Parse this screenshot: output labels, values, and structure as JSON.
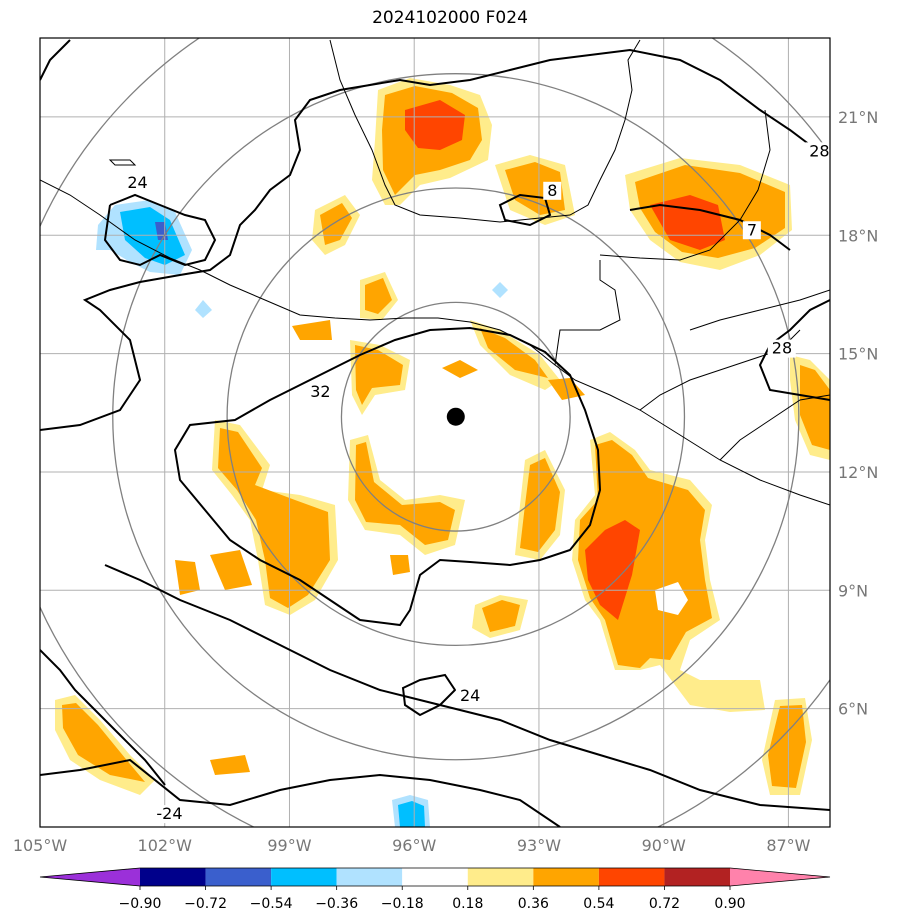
{
  "title": "2024102000 F024",
  "map": {
    "lon_range": [
      -105,
      -86
    ],
    "lat_range": [
      3,
      23
    ],
    "lon_ticks": [
      {
        "value": -105,
        "label": "105°W"
      },
      {
        "value": -102,
        "label": "102°W"
      },
      {
        "value": -99,
        "label": "99°W"
      },
      {
        "value": -96,
        "label": "96°W"
      },
      {
        "value": -93,
        "label": "93°W"
      },
      {
        "value": -90,
        "label": "90°W"
      },
      {
        "value": -87,
        "label": "87°W"
      }
    ],
    "lat_ticks": [
      {
        "value": 6,
        "label": "6°N"
      },
      {
        "value": 9,
        "label": "9°N"
      },
      {
        "value": 12,
        "label": "12°N"
      },
      {
        "value": 15,
        "label": "15°N"
      },
      {
        "value": 18,
        "label": "18°N"
      },
      {
        "value": 21,
        "label": "21°N"
      }
    ],
    "center": {
      "lon": -95.0,
      "lat": 13.4
    },
    "range_rings_deg": [
      2.75,
      5.5,
      8.25,
      11.0
    ],
    "contour_labels": [
      {
        "text": "24",
        "lon": -102.9,
        "lat": 19.2
      },
      {
        "text": "32",
        "lon": -98.5,
        "lat": 13.9
      },
      {
        "text": "28",
        "lon": -86.5,
        "lat": 20.0
      },
      {
        "text": "28",
        "lon": -87.4,
        "lat": 15.0
      },
      {
        "text": "24",
        "lon": -94.9,
        "lat": 6.2
      },
      {
        "text": "-24",
        "lon": -102.2,
        "lat": 3.2
      },
      {
        "text": "8",
        "lon": -92.8,
        "lat": 19.0
      },
      {
        "text": "7",
        "lon": -88.0,
        "lat": 18.0
      }
    ]
  },
  "colorbar": {
    "colors": [
      "#9b30d9",
      "#00008b",
      "#3a5fcd",
      "#00bfff",
      "#b0e2ff",
      "#ffffff",
      "#ffec8b",
      "#ffa500",
      "#ff4500",
      "#b22222",
      "#ff82ab"
    ],
    "labels": [
      "−0.90",
      "−0.72",
      "−0.54",
      "−0.36",
      "−0.18",
      "0.18",
      "0.36",
      "0.54",
      "0.72",
      "0.90"
    ]
  },
  "colors": {
    "ring": "#808080",
    "grid": "#b0b0b0",
    "positive_light": "#ffec8b",
    "positive_mid": "#ffa500",
    "positive_strong": "#ff4500",
    "negative_light": "#b0e2ff",
    "negative_mid": "#00bfff",
    "negative_strong": "#3a5fcd"
  }
}
